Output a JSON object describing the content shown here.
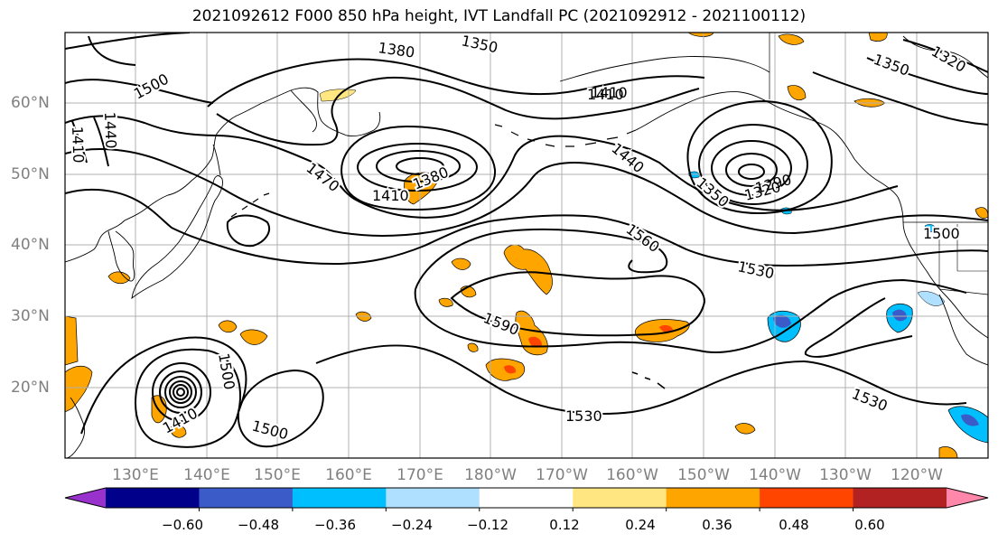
{
  "title": "2021092612 F000 850 hPa height, IVT Landfall PC (2021092912 - 2021100112)",
  "lat_labels": [
    "60°N",
    "50°N",
    "40°N",
    "30°N",
    "20°N"
  ],
  "lon_labels": [
    "130°E",
    "140°E",
    "150°E",
    "160°E",
    "170°E",
    "180°W",
    "170°W",
    "160°W",
    "150°W",
    "140°W",
    "130°W",
    "120°W"
  ],
  "contour_labels": [
    "1380",
    "1350",
    "1500",
    "1410",
    "1440",
    "1410",
    "1470",
    "1410",
    "1380",
    "1410",
    "1440",
    "1350",
    "1320",
    "1350",
    "1320",
    "1290",
    "1560",
    "1530",
    "1500",
    "1590",
    "1500",
    "1530",
    "1530",
    "1500",
    "1410"
  ],
  "colorbar": {
    "ticks": [
      "−0.60",
      "−0.48",
      "−0.36",
      "−0.24",
      "−0.12",
      "0.12",
      "0.24",
      "0.36",
      "0.48",
      "0.60"
    ],
    "colors": [
      "#9932cc",
      "#00008b",
      "#3a5bc8",
      "#00bfff",
      "#b0e0ff",
      "#ffffff",
      "#ffe680",
      "#ffa500",
      "#ff4500",
      "#b22222",
      "#ff88aa"
    ]
  },
  "colors": {
    "contour": "#000000",
    "coast": "#000000",
    "grid": "#b0b0b0",
    "positive_low": "#ffe680",
    "positive_mid": "#ffa500",
    "positive_high": "#ff4500",
    "negative_low": "#b0e0ff",
    "negative_mid": "#00bfff",
    "negative_high": "#3a5bc8"
  }
}
